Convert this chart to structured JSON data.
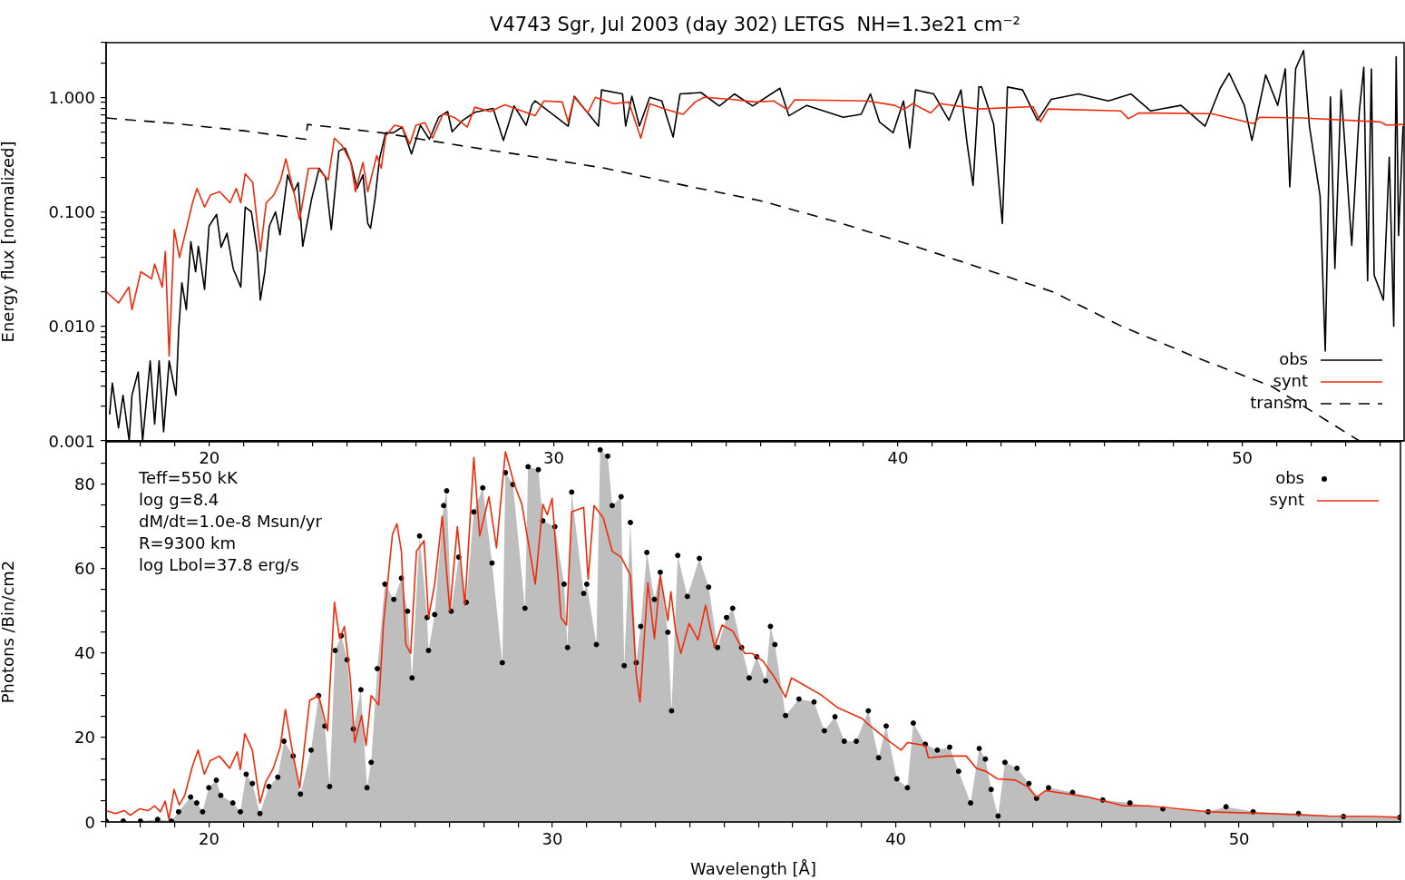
{
  "chart_data": [
    {
      "type": "line",
      "title": "V4743 Sgr, Jul 2003 (day 302) LETGS  NH=1.3e21 cm⁻²",
      "ylabel": "Energy flux [normalized]",
      "log": "y",
      "legend": "bottom right",
      "xlim": [
        17,
        54.7
      ],
      "xticks": [
        {
          "value": 17,
          "label": null
        },
        {
          "value": 18,
          "label": null
        },
        {
          "value": 19,
          "label": null
        },
        20,
        {
          "value": 21,
          "label": null
        },
        {
          "value": 22,
          "label": null
        },
        {
          "value": 23,
          "label": null
        },
        {
          "value": 24,
          "label": null
        },
        {
          "value": 25,
          "label": null
        },
        {
          "value": 26,
          "label": null
        },
        {
          "value": 27,
          "label": null
        },
        {
          "value": 28,
          "label": null
        },
        {
          "value": 29,
          "label": null
        },
        30,
        {
          "value": 31,
          "label": null
        },
        {
          "value": 32,
          "label": null
        },
        {
          "value": 33,
          "label": null
        },
        {
          "value": 34,
          "label": null
        },
        {
          "value": 35,
          "label": null
        },
        {
          "value": 36,
          "label": null
        },
        {
          "value": 37,
          "label": null
        },
        {
          "value": 38,
          "label": null
        },
        {
          "value": 39,
          "label": null
        },
        40,
        {
          "value": 41,
          "label": null
        },
        {
          "value": 42,
          "label": null
        },
        {
          "value": 43,
          "label": null
        },
        {
          "value": 44,
          "label": null
        },
        {
          "value": 45,
          "label": null
        },
        {
          "value": 46,
          "label": null
        },
        {
          "value": 47,
          "label": null
        },
        {
          "value": 48,
          "label": null
        },
        {
          "value": 49,
          "label": null
        },
        50,
        {
          "value": 51,
          "label": null
        },
        {
          "value": 52,
          "label": null
        },
        {
          "value": 53,
          "label": null
        },
        {
          "value": 54,
          "label": null
        }
      ],
      "ylim": [
        0.001,
        3
      ],
      "yticks": [
        0.001,
        {
          "value": 0.002,
          "label": null
        },
        {
          "value": 0.003,
          "label": null
        },
        {
          "value": 0.004,
          "label": null
        },
        {
          "value": 0.005,
          "label": null
        },
        {
          "value": 0.006,
          "label": null
        },
        {
          "value": 0.007,
          "label": null
        },
        {
          "value": 0.008,
          "label": null
        },
        {
          "value": 0.009,
          "label": null
        },
        {
          "value": 0.01,
          "label": "0.010"
        },
        {
          "value": 0.02,
          "label": null
        },
        {
          "value": 0.03,
          "label": null
        },
        {
          "value": 0.04,
          "label": null
        },
        {
          "value": 0.05,
          "label": null
        },
        {
          "value": 0.06,
          "label": null
        },
        {
          "value": 0.07,
          "label": null
        },
        {
          "value": 0.08,
          "label": null
        },
        {
          "value": 0.09,
          "label": null
        },
        {
          "value": 0.1,
          "label": "0.100"
        },
        {
          "value": 0.2,
          "label": null
        },
        {
          "value": 0.3,
          "label": null
        },
        {
          "value": 0.4,
          "label": null
        },
        {
          "value": 0.5,
          "label": null
        },
        {
          "value": 0.6,
          "label": null
        },
        {
          "value": 0.7,
          "label": null
        },
        {
          "value": 0.8,
          "label": null
        },
        {
          "value": 0.9,
          "label": null
        },
        {
          "value": 1,
          "label": "1.000"
        },
        {
          "value": 2,
          "label": null
        },
        {
          "value": 3,
          "label": null
        }
      ],
      "series": [
        {
          "name": "obs",
          "color": "#000000",
          "x": [
            17.1,
            17.18,
            17.36,
            17.49,
            17.67,
            17.75,
            17.93,
            18.06,
            18.28,
            18.41,
            18.54,
            18.67,
            18.83,
            19.03,
            19.11,
            19.2,
            19.33,
            19.46,
            19.6,
            19.68,
            19.86,
            19.99,
            20.21,
            20.34,
            20.51,
            20.69,
            20.91,
            21.04,
            21.22,
            21.39,
            21.48,
            21.61,
            21.74,
            21.92,
            22.05,
            22.27,
            22.45,
            22.58,
            22.71,
            22.97,
            23.19,
            23.37,
            23.54,
            23.76,
            23.94,
            24.11,
            24.29,
            24.46,
            24.6,
            24.68,
            24.81,
            24.94,
            25.12,
            25.34,
            25.6,
            25.87,
            26.13,
            26.39,
            26.66,
            26.92,
            27.05,
            27.36,
            27.71,
            28.24,
            28.54,
            28.85,
            29.2,
            29.37,
            29.46,
            30.42,
            30.6,
            30.99,
            31.3,
            31.39,
            32.0,
            32.09,
            32.27,
            32.49,
            32.79,
            33.14,
            33.47,
            33.67,
            34.28,
            34.81,
            35.25,
            35.78,
            36.57,
            36.83,
            37.35,
            38.41,
            38.93,
            39.2,
            39.46,
            39.86,
            40.16,
            40.34,
            40.51,
            41.04,
            41.48,
            41.83,
            42.0,
            42.18,
            42.35,
            42.43,
            42.78,
            43.03,
            43.18,
            43.62,
            44.05,
            44.45,
            45.24,
            46.11,
            46.77,
            47.34,
            48.22,
            48.92,
            49.36,
            49.62,
            50.06,
            50.28,
            50.68,
            51.03,
            51.25,
            51.38,
            51.55,
            51.78,
            51.95,
            52.26,
            52.41,
            52.56,
            52.69,
            52.87,
            53.18,
            53.4,
            53.53,
            53.64,
            53.75,
            53.83,
            54.1,
            54.27,
            54.4,
            54.47,
            54.54,
            54.67
          ],
          "values": [
            0.0017,
            0.0032,
            0.0013,
            0.0025,
            0.001,
            0.0025,
            0.004,
            0.001,
            0.005,
            0.0014,
            0.005,
            0.0012,
            0.005,
            0.0025,
            0.0095,
            0.024,
            0.014,
            0.055,
            0.03,
            0.05,
            0.021,
            0.075,
            0.095,
            0.049,
            0.065,
            0.032,
            0.022,
            0.11,
            0.1,
            0.045,
            0.017,
            0.03,
            0.075,
            0.1,
            0.063,
            0.21,
            0.15,
            0.18,
            0.05,
            0.13,
            0.24,
            0.2,
            0.07,
            0.34,
            0.36,
            0.27,
            0.16,
            0.21,
            0.079,
            0.072,
            0.13,
            0.29,
            0.49,
            0.49,
            0.55,
            0.32,
            0.57,
            0.43,
            0.67,
            0.75,
            0.5,
            0.63,
            0.74,
            0.8,
            0.42,
            0.84,
            0.57,
            0.86,
            0.93,
            0.56,
            1.02,
            0.73,
            0.56,
            1.16,
            1.07,
            0.56,
            1.02,
            0.56,
            1.0,
            0.93,
            0.45,
            1.07,
            1.1,
            0.84,
            1.07,
            0.84,
            1.2,
            0.69,
            0.85,
            0.67,
            0.71,
            1.07,
            0.61,
            0.49,
            0.93,
            0.36,
            1.16,
            1.07,
            0.63,
            1.16,
            0.41,
            0.17,
            1.23,
            1.23,
            0.58,
            0.079,
            1.23,
            1.16,
            0.63,
            0.96,
            1.07,
            0.93,
            1.07,
            0.76,
            0.85,
            0.56,
            1.2,
            1.62,
            0.85,
            0.42,
            1.57,
            0.85,
            1.77,
            0.165,
            1.77,
            2.56,
            0.56,
            0.137,
            0.0061,
            1.01,
            0.032,
            1.16,
            0.051,
            0.76,
            1.83,
            0.025,
            1.77,
            0.028,
            0.017,
            0.3,
            0.01,
            2.26,
            0.062,
            0.56
          ]
        },
        {
          "name": "synt",
          "color": "#ee2c0c",
          "x": [
            17.01,
            17.36,
            17.66,
            17.75,
            18.01,
            18.32,
            18.41,
            18.63,
            18.72,
            18.83,
            18.98,
            19.13,
            19.29,
            19.51,
            19.64,
            19.86,
            20.03,
            20.3,
            20.6,
            20.78,
            20.91,
            21.04,
            21.26,
            21.48,
            21.65,
            21.87,
            22.07,
            22.22,
            22.45,
            22.62,
            22.88,
            23.15,
            23.45,
            23.63,
            23.85,
            24.11,
            24.24,
            24.46,
            24.6,
            24.86,
            24.99,
            25.12,
            25.38,
            25.6,
            25.82,
            26.0,
            26.26,
            26.48,
            26.79,
            27.14,
            27.49,
            27.71,
            28.15,
            28.58,
            29.46,
            29.72,
            30.25,
            30.42,
            30.6,
            30.99,
            31.21,
            31.74,
            32.18,
            32.53,
            32.79,
            33.23,
            33.76,
            34.11,
            34.37,
            35.16,
            35.86,
            36.39,
            36.79,
            37.0,
            39.11,
            39.9,
            40.16,
            40.43,
            40.95,
            41.22,
            42.34,
            43.92,
            44.14,
            44.36,
            46.47,
            46.69,
            47.0,
            49.1,
            50.33,
            50.5,
            51.73,
            54.01,
            54.19,
            54.68
          ],
          "values": [
            0.02,
            0.016,
            0.022,
            0.014,
            0.03,
            0.026,
            0.035,
            0.022,
            0.045,
            0.0055,
            0.07,
            0.04,
            0.063,
            0.12,
            0.16,
            0.11,
            0.14,
            0.15,
            0.12,
            0.16,
            0.12,
            0.215,
            0.18,
            0.045,
            0.12,
            0.14,
            0.19,
            0.29,
            0.15,
            0.085,
            0.24,
            0.24,
            0.19,
            0.44,
            0.38,
            0.27,
            0.15,
            0.27,
            0.15,
            0.31,
            0.24,
            0.46,
            0.57,
            0.55,
            0.39,
            0.57,
            0.6,
            0.44,
            0.72,
            0.66,
            0.55,
            0.82,
            0.75,
            0.86,
            0.69,
            0.93,
            0.91,
            0.61,
            1.0,
            0.73,
            1.0,
            0.88,
            0.91,
            0.44,
            0.88,
            0.79,
            0.71,
            0.91,
            1.0,
            0.96,
            0.91,
            0.93,
            0.78,
            0.95,
            0.93,
            0.85,
            0.78,
            0.88,
            0.73,
            0.88,
            0.79,
            0.83,
            0.61,
            0.79,
            0.76,
            0.65,
            0.73,
            0.72,
            0.59,
            0.67,
            0.66,
            0.61,
            0.57,
            0.58
          ]
        },
        {
          "name": "transm",
          "color": "#000000",
          "line_style": "dashed",
          "x": [
            17,
            19,
            21,
            22.8,
            22.85,
            25,
            27.5,
            29.5,
            31.5,
            33.8,
            36,
            38.2,
            40.4,
            42.6,
            44.5,
            46.5,
            48.7,
            50.85,
            53.4
          ],
          "values": [
            0.66,
            0.59,
            0.51,
            0.43,
            0.58,
            0.49,
            0.37,
            0.3,
            0.24,
            0.17,
            0.125,
            0.082,
            0.051,
            0.031,
            0.02,
            0.01,
            0.0053,
            0.003,
            0.001
          ]
        }
      ]
    },
    {
      "type": "area",
      "xlabel": "Wavelength [Å]",
      "ylabel": "Photons /Bin/cm2",
      "legend": "top right",
      "annotations": [
        "Teff=550 kK",
        "log g=8.4",
        "dM/dt=1.0e-8 Msun/yr",
        "R=9300 km",
        "log Lbol=37.8 erg/s"
      ],
      "xlim": [
        17,
        54.7
      ],
      "xticks": [
        {
          "value": 17,
          "label": null
        },
        {
          "value": 18,
          "label": null
        },
        {
          "value": 19,
          "label": null
        },
        20,
        {
          "value": 21,
          "label": null
        },
        {
          "value": 22,
          "label": null
        },
        {
          "value": 23,
          "label": null
        },
        {
          "value": 24,
          "label": null
        },
        {
          "value": 25,
          "label": null
        },
        {
          "value": 26,
          "label": null
        },
        {
          "value": 27,
          "label": null
        },
        {
          "value": 28,
          "label": null
        },
        {
          "value": 29,
          "label": null
        },
        30,
        {
          "value": 31,
          "label": null
        },
        {
          "value": 32,
          "label": null
        },
        {
          "value": 33,
          "label": null
        },
        {
          "value": 34,
          "label": null
        },
        {
          "value": 35,
          "label": null
        },
        {
          "value": 36,
          "label": null
        },
        {
          "value": 37,
          "label": null
        },
        {
          "value": 38,
          "label": null
        },
        {
          "value": 39,
          "label": null
        },
        40,
        {
          "value": 41,
          "label": null
        },
        {
          "value": 42,
          "label": null
        },
        {
          "value": 43,
          "label": null
        },
        {
          "value": 44,
          "label": null
        },
        {
          "value": 45,
          "label": null
        },
        {
          "value": 46,
          "label": null
        },
        {
          "value": 47,
          "label": null
        },
        {
          "value": 48,
          "label": null
        },
        {
          "value": 49,
          "label": null
        },
        50,
        {
          "value": 51,
          "label": null
        },
        {
          "value": 52,
          "label": null
        },
        {
          "value": 53,
          "label": null
        },
        {
          "value": 54,
          "label": null
        }
      ],
      "ylim": [
        0,
        90
      ],
      "yticks": [
        0,
        {
          "value": 5,
          "label": null
        },
        {
          "value": 10,
          "label": null
        },
        {
          "value": 15,
          "label": null
        },
        20,
        {
          "value": 25,
          "label": null
        },
        {
          "value": 30,
          "label": null
        },
        {
          "value": 35,
          "label": null
        },
        40,
        {
          "value": 45,
          "label": null
        },
        {
          "value": 50,
          "label": null
        },
        {
          "value": 55,
          "label": null
        },
        60,
        {
          "value": 65,
          "label": null
        },
        {
          "value": 70,
          "label": null
        },
        {
          "value": 75,
          "label": null
        },
        80,
        {
          "value": 85,
          "label": null
        }
      ],
      "series": [
        {
          "color": "#bebebe",
          "x": [
            17.0,
            17.5,
            18.0,
            18.5,
            18.9,
            19.11,
            19.46,
            19.64,
            19.81,
            19.99,
            20.21,
            20.34,
            20.69,
            20.91,
            21.08,
            21.26,
            21.48,
            21.74,
            22.0,
            22.18,
            22.45,
            22.66,
            22.97,
            23.19,
            23.37,
            23.51,
            23.67,
            23.85,
            24.02,
            24.2,
            24.42,
            24.6,
            24.72,
            24.9,
            25.12,
            25.38,
            25.6,
            25.78,
            25.91,
            26.13,
            26.35,
            26.39,
            26.57,
            26.83,
            26.92,
            27.05,
            27.27,
            27.49,
            27.71,
            27.97,
            28.24,
            28.54,
            28.63,
            28.85,
            29.2,
            29.29,
            29.59,
            29.72,
            30.07,
            30.34,
            30.44,
            30.56,
            30.91,
            31.0,
            31.28,
            31.39,
            31.61,
            31.74,
            32.0,
            32.09,
            32.27,
            32.44,
            32.57,
            32.75,
            32.97,
            33.14,
            33.36,
            33.47,
            33.65,
            33.93,
            34.28,
            34.55,
            34.81,
            35.07,
            35.25,
            35.51,
            35.73,
            35.95,
            36.21,
            36.35,
            36.48,
            36.79,
            37.18,
            37.62,
            37.92,
            38.23,
            38.5,
            38.85,
            39.2,
            39.5,
            39.72,
            40.03,
            40.34,
            40.51,
            40.86,
            41.21,
            41.57,
            41.83,
            42.18,
            42.43,
            42.61,
            42.78,
            42.98,
            43.18,
            43.53,
            43.88,
            44.1,
            44.45,
            45.15,
            46.03,
            46.82,
            47.78,
            49.1,
            49.62,
            50.41,
            51.73,
            53.04,
            54.68
          ],
          "values": [
            0.2,
            0.2,
            0.2,
            0.6,
            0.2,
            2.4,
            5.9,
            4.5,
            2.4,
            8.1,
            9.9,
            6.3,
            4.5,
            2.4,
            11.3,
            9.1,
            2,
            8.4,
            10.6,
            19.1,
            15.6,
            6.6,
            17,
            29.9,
            22.7,
            8.4,
            40.6,
            44.1,
            38.4,
            22,
            31.3,
            8.1,
            14.1,
            36.3,
            56.3,
            52.7,
            57.7,
            49.9,
            34.1,
            67.7,
            48.4,
            40.6,
            49.1,
            74.9,
            78.4,
            49.9,
            62.7,
            52,
            73.4,
            79.1,
            61.3,
            37.7,
            82.7,
            79.9,
            50.6,
            84.1,
            83.4,
            71.3,
            69.9,
            56.3,
            41.3,
            78.1,
            54.1,
            56.3,
            42,
            88.1,
            86.6,
            74.9,
            77,
            37,
            70.9,
            37.7,
            46.3,
            63.8,
            52.7,
            59.1,
            44.9,
            26.3,
            63.1,
            53.4,
            62.4,
            55.6,
            41.3,
            48.4,
            50.6,
            41.3,
            34.1,
            39.1,
            33.4,
            46.3,
            42,
            25.2,
            29.1,
            28.4,
            21.6,
            24.9,
            19.1,
            19.1,
            26.3,
            15.2,
            22.7,
            10.2,
            8.1,
            23.4,
            18.4,
            17,
            17.7,
            12,
            4.5,
            17.4,
            14.9,
            7.7,
            1.4,
            14.1,
            12.7,
            9.1,
            5.6,
            8.1,
            7,
            5.2,
            4.5,
            3.1,
            2.4,
            3.6,
            2.4,
            2,
            1.3,
            1.1
          ]
        },
        {
          "type": "scatter",
          "name": "obs",
          "color": "#000000",
          "marker": "circle",
          "x": [
            17.0,
            17.5,
            18.0,
            18.5,
            18.9,
            19.11,
            19.46,
            19.64,
            19.81,
            19.99,
            20.21,
            20.34,
            20.69,
            20.91,
            21.08,
            21.26,
            21.48,
            21.74,
            22.0,
            22.18,
            22.45,
            22.66,
            22.97,
            23.19,
            23.37,
            23.51,
            23.67,
            23.85,
            24.02,
            24.2,
            24.42,
            24.6,
            24.72,
            24.9,
            25.12,
            25.38,
            25.6,
            25.78,
            25.91,
            26.13,
            26.35,
            26.39,
            26.57,
            26.83,
            26.92,
            27.05,
            27.27,
            27.49,
            27.71,
            27.97,
            28.24,
            28.54,
            28.63,
            28.85,
            29.2,
            29.29,
            29.59,
            29.72,
            30.07,
            30.34,
            30.44,
            30.56,
            30.91,
            31.0,
            31.28,
            31.39,
            31.61,
            31.74,
            32.0,
            32.09,
            32.27,
            32.44,
            32.57,
            32.75,
            32.97,
            33.14,
            33.36,
            33.47,
            33.65,
            33.93,
            34.28,
            34.55,
            34.81,
            35.07,
            35.25,
            35.51,
            35.73,
            35.95,
            36.21,
            36.35,
            36.48,
            36.79,
            37.18,
            37.62,
            37.92,
            38.23,
            38.5,
            38.85,
            39.2,
            39.5,
            39.72,
            40.03,
            40.34,
            40.51,
            40.86,
            41.21,
            41.57,
            41.83,
            42.18,
            42.43,
            42.61,
            42.78,
            42.98,
            43.18,
            43.53,
            43.88,
            44.1,
            44.45,
            45.15,
            46.03,
            46.82,
            47.78,
            49.1,
            49.62,
            50.41,
            51.73,
            53.04,
            54.68
          ],
          "values": [
            0.2,
            0.2,
            0.2,
            0.6,
            0.2,
            2.4,
            5.9,
            4.5,
            2.4,
            8.1,
            9.9,
            6.3,
            4.5,
            2.4,
            11.3,
            9.1,
            2,
            8.4,
            10.6,
            19.1,
            15.6,
            6.6,
            17,
            29.9,
            22.7,
            8.4,
            40.6,
            44.1,
            38.4,
            22,
            31.3,
            8.1,
            14.1,
            36.3,
            56.3,
            52.7,
            57.7,
            49.9,
            34.1,
            67.7,
            48.4,
            40.6,
            49.1,
            74.9,
            78.4,
            49.9,
            62.7,
            52,
            73.4,
            79.1,
            61.3,
            37.7,
            82.7,
            79.9,
            50.6,
            84.1,
            83.4,
            71.3,
            69.9,
            56.3,
            41.3,
            78.1,
            54.1,
            56.3,
            42,
            88.1,
            86.6,
            74.9,
            77,
            37,
            70.9,
            37.7,
            46.3,
            63.8,
            52.7,
            59.1,
            44.9,
            26.3,
            63.1,
            53.4,
            62.4,
            55.6,
            41.3,
            48.4,
            50.6,
            41.3,
            34.1,
            39.1,
            33.4,
            46.3,
            42,
            25.2,
            29.1,
            28.4,
            21.6,
            24.9,
            19.1,
            19.1,
            26.3,
            15.2,
            22.7,
            10.2,
            8.1,
            23.4,
            18.4,
            17,
            17.7,
            12,
            4.5,
            17.4,
            14.9,
            7.7,
            1.4,
            14.1,
            12.7,
            9.1,
            5.6,
            8.1,
            7,
            5.2,
            4.5,
            3.1,
            2.4,
            3.6,
            2.4,
            2,
            1.3,
            1.1
          ]
        },
        {
          "type": "line",
          "name": "synt",
          "color": "#ee2c0c",
          "x": [
            17.0,
            17.27,
            17.53,
            17.7,
            17.97,
            18.23,
            18.41,
            18.58,
            18.72,
            18.83,
            18.98,
            19.13,
            19.29,
            19.51,
            19.68,
            19.86,
            20.03,
            20.3,
            20.6,
            20.82,
            20.91,
            21.04,
            21.26,
            21.48,
            21.65,
            21.87,
            22.07,
            22.22,
            22.45,
            22.64,
            22.93,
            23.19,
            23.45,
            23.65,
            23.8,
            23.94,
            24.11,
            24.24,
            24.44,
            24.57,
            24.72,
            24.94,
            25.08,
            25.34,
            25.47,
            25.6,
            25.73,
            25.87,
            26.04,
            26.26,
            26.39,
            26.57,
            26.79,
            27.01,
            27.23,
            27.45,
            27.71,
            27.88,
            28.15,
            28.37,
            28.63,
            28.89,
            29.11,
            29.5,
            29.72,
            29.85,
            29.99,
            30.25,
            30.41,
            30.56,
            30.91,
            31.04,
            31.21,
            31.48,
            31.74,
            32.0,
            32.27,
            32.44,
            32.55,
            32.78,
            32.97,
            33.14,
            33.36,
            33.45,
            33.58,
            33.74,
            33.98,
            34.24,
            34.46,
            34.72,
            34.94,
            35.25,
            35.6,
            35.82,
            36.13,
            36.48,
            36.79,
            36.96,
            37.8,
            38.32,
            39.02,
            39.2,
            39.81,
            40.16,
            40.34,
            40.86,
            40.95,
            41.48,
            42.05,
            42.35,
            42.62,
            42.96,
            43.48,
            43.83,
            44.1,
            44.36,
            45.59,
            46.64,
            47.34,
            49.1,
            50.85,
            52.61,
            54.0,
            54.68
          ],
          "values": [
            2.7,
            2,
            2.7,
            1.6,
            3.1,
            2.7,
            3.8,
            2.4,
            4.9,
            0.6,
            7.7,
            4,
            6.3,
            13.1,
            17,
            11.3,
            14.5,
            15.6,
            12.7,
            16.6,
            12.4,
            20.9,
            17,
            4.5,
            9.5,
            12.7,
            17.7,
            26.6,
            15.6,
            8.1,
            28.8,
            29.9,
            21.6,
            52,
            43.4,
            46.3,
            34.1,
            18.8,
            25.2,
            18.1,
            29.9,
            27.7,
            47,
            68.1,
            70.6,
            64.1,
            42,
            39.9,
            64.1,
            66.6,
            48.4,
            56.3,
            72.4,
            49.9,
            69.9,
            51.3,
            86.3,
            67.7,
            77,
            64.9,
            87.7,
            79.9,
            75.2,
            56.3,
            75.2,
            72.7,
            76.6,
            48.4,
            46.6,
            73.4,
            74.5,
            57.4,
            74.9,
            72,
            64.1,
            62.7,
            58.4,
            34.9,
            28.4,
            56.6,
            43.4,
            58.4,
            47.7,
            54.5,
            45.6,
            39.9,
            47,
            43.1,
            51.3,
            41.3,
            46.6,
            45.2,
            39.9,
            39.9,
            38.1,
            34.1,
            29.5,
            34.1,
            30.2,
            27,
            24.5,
            23.1,
            19.1,
            17,
            18.8,
            18.1,
            15.2,
            15.6,
            15.6,
            12.7,
            12,
            10.2,
            9.9,
            8.4,
            5.9,
            7.4,
            5.9,
            3.8,
            3.8,
            2.4,
            2,
            1.4,
            1.3,
            1.1
          ]
        }
      ]
    }
  ]
}
